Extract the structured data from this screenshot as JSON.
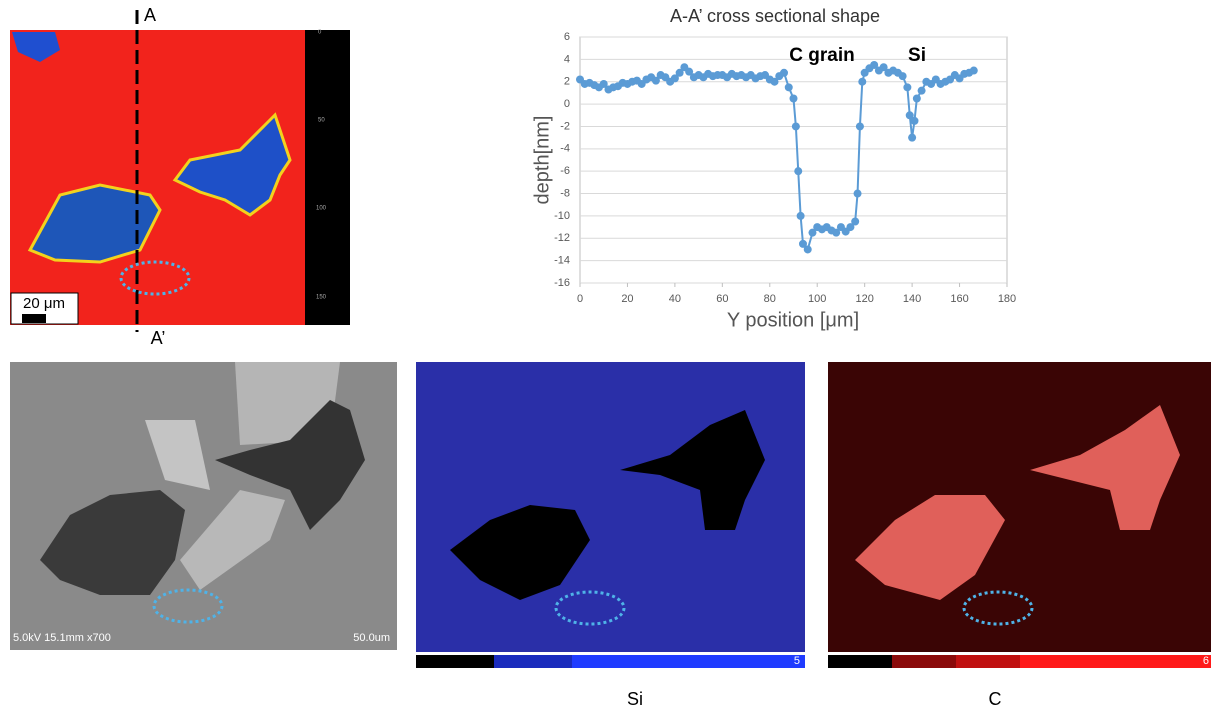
{
  "chart_data": {
    "type": "line",
    "title": "A-A’ cross sectional shape",
    "x_label": "Y position [μm]",
    "y_label": "depth[nm]",
    "annotations": [
      "C grain",
      "Si"
    ],
    "x": [
      0,
      2,
      4,
      6,
      8,
      10,
      12,
      14,
      16,
      18,
      20,
      22,
      24,
      26,
      28,
      30,
      32,
      34,
      36,
      38,
      40,
      42,
      44,
      46,
      48,
      50,
      52,
      54,
      56,
      58,
      60,
      62,
      64,
      66,
      68,
      70,
      72,
      74,
      76,
      78,
      80,
      82,
      84,
      86,
      88,
      90,
      91,
      92,
      93,
      94,
      96,
      98,
      100,
      102,
      104,
      106,
      108,
      110,
      112,
      114,
      116,
      117,
      118,
      119,
      120,
      122,
      124,
      126,
      128,
      130,
      132,
      134,
      136,
      138,
      139,
      140,
      141,
      142,
      144,
      146,
      148,
      150,
      152,
      154,
      156,
      158,
      160,
      162,
      164,
      166
    ],
    "series": [
      {
        "color": "#5b9bd5",
        "values": [
          2.2,
          1.8,
          1.9,
          1.7,
          1.5,
          1.8,
          1.3,
          1.5,
          1.6,
          1.9,
          1.8,
          2.0,
          2.1,
          1.8,
          2.2,
          2.4,
          2.1,
          2.6,
          2.4,
          2.0,
          2.3,
          2.8,
          3.3,
          2.9,
          2.4,
          2.6,
          2.4,
          2.7,
          2.5,
          2.6,
          2.6,
          2.4,
          2.7,
          2.5,
          2.6,
          2.4,
          2.6,
          2.3,
          2.5,
          2.6,
          2.2,
          2.0,
          2.5,
          2.8,
          1.5,
          0.5,
          -2,
          -6,
          -10,
          -12.5,
          -13,
          -11.5,
          -11,
          -11.2,
          -11,
          -11.3,
          -11.5,
          -11,
          -11.4,
          -11,
          -10.5,
          -8,
          -2,
          2,
          2.8,
          3.2,
          3.5,
          3.0,
          3.3,
          2.8,
          3.0,
          2.8,
          2.5,
          1.5,
          -1,
          -3,
          -1.5,
          0.5,
          1.2,
          2.0,
          1.8,
          2.2,
          1.8,
          2.0,
          2.2,
          2.6,
          2.3,
          2.7,
          2.8,
          3.0
        ]
      }
    ],
    "xlim": [
      0,
      180
    ],
    "xticks": [
      0,
      20,
      40,
      60,
      80,
      100,
      120,
      140,
      160,
      180
    ],
    "ylim": [
      -16,
      6
    ],
    "yticks": [
      -16,
      -14,
      -12,
      -10,
      -8,
      -6,
      -4,
      -2,
      0,
      2,
      4,
      6
    ]
  },
  "figure": {
    "section_start": "A",
    "section_end": "A’",
    "scale_bar": "20 μm",
    "height_map_ticks": [
      "0",
      "50",
      "100",
      "150"
    ],
    "sem_info": "5.0kV 15.1mm x700",
    "sem_scale": "50.0um",
    "si_colorbar_max": "5",
    "c_colorbar_max": "6",
    "si_label": "Si",
    "c_label": "C"
  }
}
